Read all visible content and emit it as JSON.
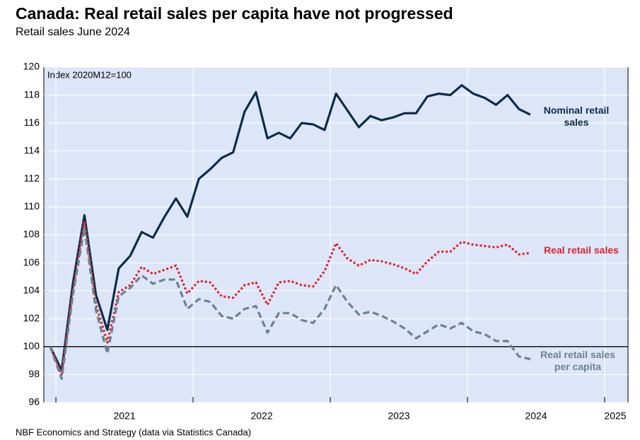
{
  "chart_data": {
    "type": "line",
    "title": "Canada: Real retail sales per capita have not progressed",
    "subtitle": "Retail sales June 2024",
    "annotation": "Index 2020M12=100",
    "source": "NBF Economics and Strategy (data via Statistics Canada)",
    "x": [
      2020.958,
      2021.042,
      2021.125,
      2021.208,
      2021.292,
      2021.375,
      2021.458,
      2021.542,
      2021.625,
      2021.708,
      2021.792,
      2021.875,
      2021.958,
      2022.042,
      2022.125,
      2022.208,
      2022.292,
      2022.375,
      2022.458,
      2022.542,
      2022.625,
      2022.708,
      2022.792,
      2022.875,
      2022.958,
      2023.042,
      2023.125,
      2023.208,
      2023.292,
      2023.375,
      2023.458,
      2023.542,
      2023.625,
      2023.708,
      2023.792,
      2023.875,
      2023.958,
      2024.042,
      2024.125,
      2024.208,
      2024.292,
      2024.375,
      2024.458
    ],
    "series": [
      {
        "name": "Nominal retail sales",
        "color": "#0d2c4a",
        "dash": "solid",
        "values": [
          100,
          98.3,
          104.6,
          109.4,
          103.7,
          101.2,
          105.6,
          106.5,
          108.2,
          107.8,
          109.3,
          110.6,
          109.3,
          112.0,
          112.7,
          113.5,
          113.9,
          116.8,
          118.2,
          114.9,
          115.3,
          114.9,
          116.0,
          115.9,
          115.5,
          118.1,
          116.9,
          115.7,
          116.5,
          116.2,
          116.4,
          116.7,
          116.7,
          117.9,
          118.1,
          118.0,
          118.7,
          118.1,
          117.8,
          117.3,
          118.0,
          117.0,
          116.6
        ]
      },
      {
        "name": "Real retail sales",
        "color": "#e0252b",
        "dash": "dotted",
        "values": [
          100,
          98.0,
          104.0,
          109.0,
          103.0,
          100.3,
          103.9,
          104.4,
          105.7,
          105.2,
          105.5,
          105.8,
          103.8,
          104.7,
          104.6,
          103.6,
          103.5,
          104.4,
          104.6,
          103.0,
          104.6,
          104.7,
          104.4,
          104.3,
          105.4,
          107.4,
          106.3,
          105.8,
          106.2,
          106.1,
          105.9,
          105.6,
          105.2,
          106.1,
          106.8,
          106.8,
          107.5,
          107.3,
          107.2,
          107.1,
          107.3,
          106.6,
          106.7
        ]
      },
      {
        "name": "Real retail sales per capita",
        "color": "#6b8290",
        "dash": "dashed",
        "values": [
          100,
          97.7,
          103.8,
          108.5,
          102.6,
          99.5,
          103.6,
          104.2,
          105.1,
          104.5,
          104.8,
          104.8,
          102.7,
          103.4,
          103.2,
          102.2,
          102.0,
          102.7,
          102.9,
          101.0,
          102.4,
          102.4,
          101.9,
          101.7,
          102.7,
          104.4,
          103.2,
          102.3,
          102.5,
          102.2,
          101.8,
          101.3,
          100.6,
          101.1,
          101.6,
          101.3,
          101.7,
          101.1,
          100.9,
          100.4,
          100.4,
          99.3,
          99.1
        ]
      }
    ],
    "xlim": [
      2020.912,
      2025.17
    ],
    "xticks": [
      {
        "value": 2021.5,
        "label": "2021"
      },
      {
        "value": 2022.5,
        "label": "2022"
      },
      {
        "value": 2023.5,
        "label": "2023"
      },
      {
        "value": 2024.5,
        "label": "2024"
      },
      {
        "value": 2025.5,
        "label": "2025"
      }
    ],
    "xgrid": [
      2021,
      2022,
      2023,
      2024,
      2025
    ],
    "ylim": [
      96,
      120
    ],
    "yticks": [
      96,
      98,
      100,
      102,
      104,
      106,
      108,
      110,
      112,
      114,
      116,
      118,
      120
    ],
    "hline": 100,
    "grid": true
  }
}
